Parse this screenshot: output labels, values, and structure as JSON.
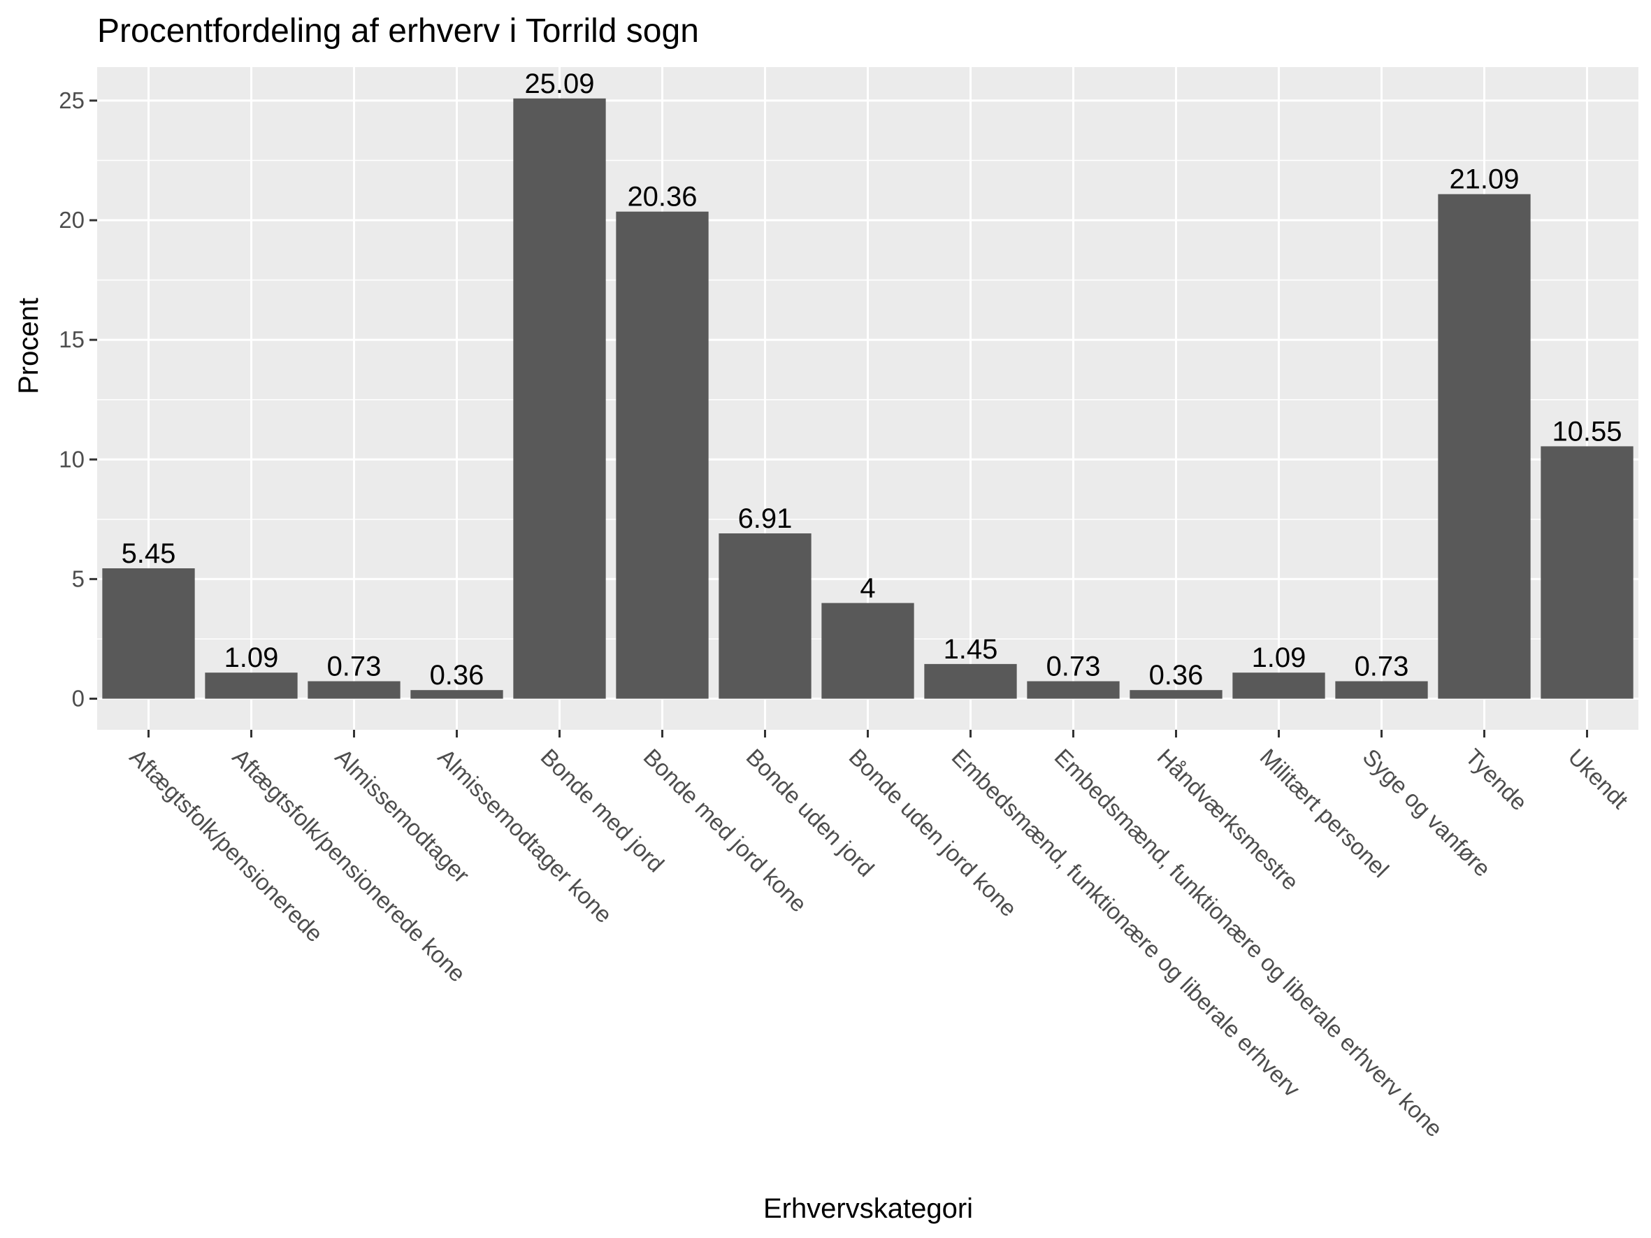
{
  "chart_data": {
    "type": "bar",
    "title": "Procentfordeling af erhverv i Torrild sogn",
    "xlabel": "Erhvervskategori",
    "ylabel": "Procent",
    "ylim": [
      -1.3,
      26.4
    ],
    "yticks": [
      0,
      5,
      10,
      15,
      20,
      25
    ],
    "grid": true,
    "colors": {
      "bar": "#595959",
      "panel": "#ebebeb",
      "grid": "#ffffff",
      "tick": "#4d4d4d"
    },
    "categories": [
      "Aftægtsfolk/pensionerede",
      "Aftægtsfolk/pensionerede kone",
      "Almissemodtager",
      "Almissemodtager kone",
      "Bonde med jord",
      "Bonde med jord kone",
      "Bonde uden jord",
      "Bonde uden jord kone",
      "Embedsmænd, funktionære og liberale erhverv",
      "Embedsmænd, funktionære og liberale erhverv kone",
      "Håndværksmestre",
      "Militært personel",
      "Syge og vanføre",
      "Tyende",
      "Ukendt"
    ],
    "values": [
      5.45,
      1.09,
      0.73,
      0.36,
      25.09,
      20.36,
      6.91,
      4,
      1.45,
      0.73,
      0.36,
      1.09,
      0.73,
      21.09,
      10.55
    ],
    "value_labels": [
      "5.45",
      "1.09",
      "0.73",
      "0.36",
      "25.09",
      "20.36",
      "6.91",
      "4",
      "1.45",
      "0.73",
      "0.36",
      "1.09",
      "0.73",
      "21.09",
      "10.55"
    ]
  }
}
